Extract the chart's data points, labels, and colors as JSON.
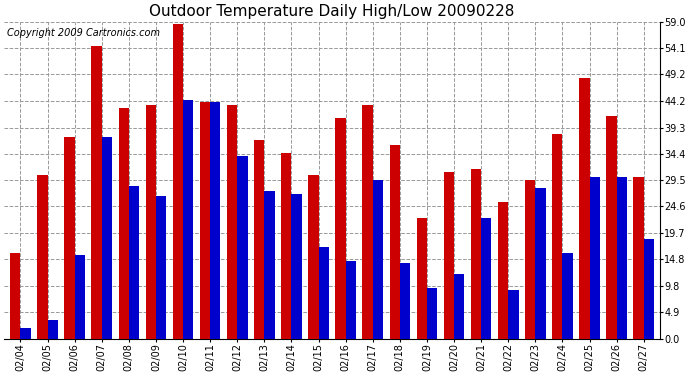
{
  "title": "Outdoor Temperature Daily High/Low 20090228",
  "copyright_text": "Copyright 2009 Cartronics.com",
  "dates": [
    "02/04",
    "02/05",
    "02/06",
    "02/07",
    "02/08",
    "02/09",
    "02/10",
    "02/11",
    "02/12",
    "02/13",
    "02/14",
    "02/15",
    "02/16",
    "02/17",
    "02/18",
    "02/19",
    "02/20",
    "02/21",
    "02/22",
    "02/23",
    "02/24",
    "02/25",
    "02/26",
    "02/27"
  ],
  "highs": [
    16.0,
    30.5,
    37.5,
    54.5,
    43.0,
    43.5,
    58.5,
    44.0,
    43.5,
    37.0,
    34.5,
    30.5,
    41.0,
    43.5,
    36.0,
    22.5,
    31.0,
    31.5,
    25.5,
    29.5,
    38.0,
    48.5,
    41.5,
    30.0
  ],
  "lows": [
    2.0,
    3.5,
    15.5,
    37.5,
    28.5,
    26.5,
    44.5,
    44.0,
    34.0,
    27.5,
    27.0,
    17.0,
    14.5,
    29.5,
    14.0,
    9.5,
    12.0,
    22.5,
    9.0,
    28.0,
    16.0,
    30.0,
    30.0,
    18.5
  ],
  "high_color": "#cc0000",
  "low_color": "#0000cc",
  "bg_color": "#ffffff",
  "plot_bg_color": "#ffffff",
  "grid_color": "#999999",
  "ylim": [
    0,
    59.0
  ],
  "yticks": [
    0.0,
    4.9,
    9.8,
    14.8,
    19.7,
    24.6,
    29.5,
    34.4,
    39.3,
    44.2,
    49.2,
    54.1,
    59.0
  ],
  "title_fontsize": 11,
  "tick_fontsize": 7,
  "copyright_fontsize": 7,
  "bar_width": 0.38
}
